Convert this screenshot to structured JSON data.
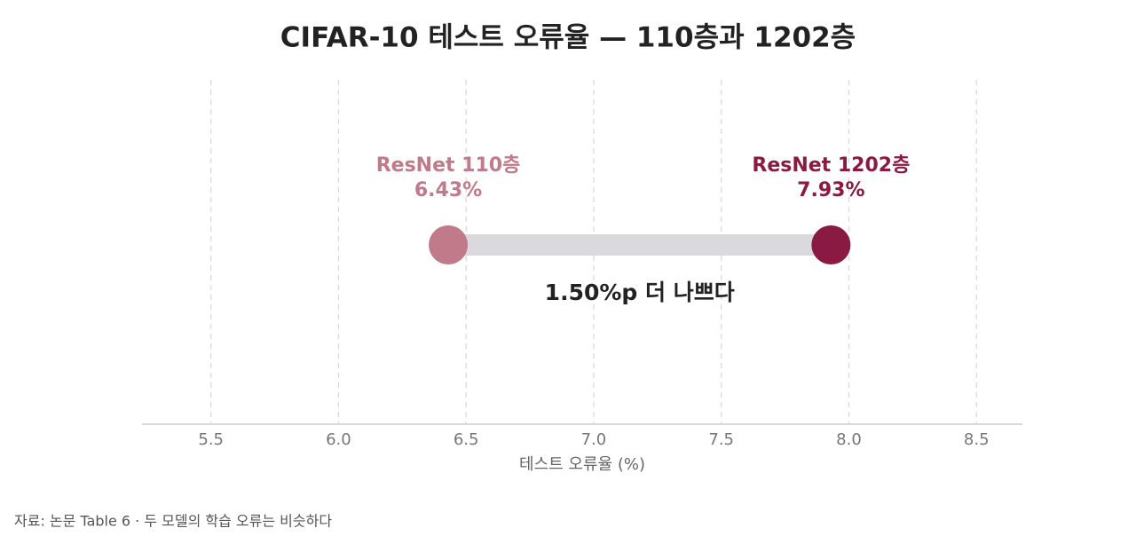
{
  "chart_data": {
    "type": "dumbbell",
    "title": "CIFAR-10 테스트 오류율 — 110층과 1202층",
    "series": [
      {
        "name": "ResNet 110층",
        "color": "#c17a8a",
        "values": [
          6.43
        ],
        "value_labels": [
          "6.43%"
        ]
      },
      {
        "name": "ResNet 1202층",
        "color": "#8b1a42",
        "values": [
          7.93
        ],
        "value_labels": [
          "7.93%"
        ]
      }
    ],
    "connector_color": "#d9d9de",
    "annotation": "1.50%p 더 나쁘다",
    "xlabel": "테스트 오류율 (%)",
    "xlim": [
      5.23,
      8.68
    ],
    "xticks": [
      5.5,
      {
        "value": 6,
        "label": "6.0"
      },
      6.5,
      {
        "value": 7,
        "label": "7.0"
      },
      7.5,
      {
        "value": 8,
        "label": "8.0"
      },
      8.5
    ],
    "grid": true,
    "note": "자료: 논문 Table 6 · 두 모델의 학습 오류는 비슷하다"
  }
}
